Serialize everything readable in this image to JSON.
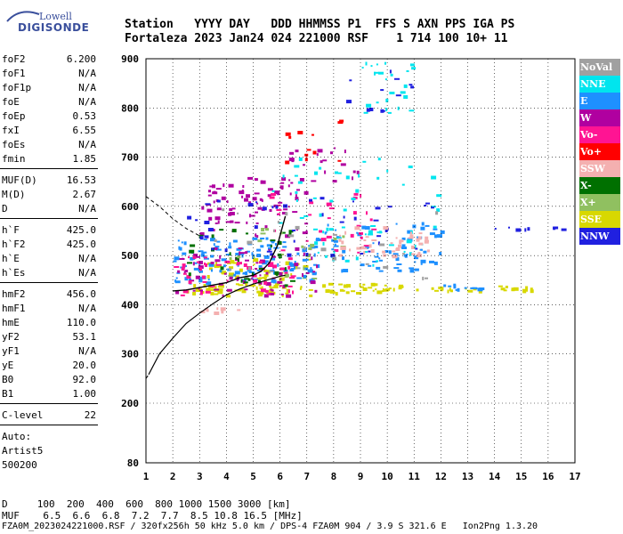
{
  "logo": {
    "line1": "Lowell",
    "line2": "DIGISONDE"
  },
  "header": {
    "row1": "Station   YYYY DAY   DDD HHMMSS P1  FFS S AXN PPS IGA PS",
    "row2": "Fortaleza 2023 Jan24 024 221000 RSF    1 714 100 10+ 11"
  },
  "params": [
    {
      "key": "foF2",
      "value": "6.200"
    },
    {
      "key": "foF1",
      "value": "N/A"
    },
    {
      "key": "foF1p",
      "value": "N/A"
    },
    {
      "key": "foE",
      "value": "N/A"
    },
    {
      "key": "foEp",
      "value": "0.53"
    },
    {
      "key": "fxI",
      "value": "6.55"
    },
    {
      "key": "foEs",
      "value": "N/A"
    },
    {
      "key": "fmin",
      "value": "1.85"
    },
    {
      "key": "MUF(D)",
      "value": "16.53"
    },
    {
      "key": "M(D)",
      "value": "2.67"
    },
    {
      "key": "D",
      "value": "N/A"
    },
    {
      "key": "h`F",
      "value": "425.0"
    },
    {
      "key": "h`F2",
      "value": "425.0"
    },
    {
      "key": "h`E",
      "value": "N/A"
    },
    {
      "key": "h`Es",
      "value": "N/A"
    },
    {
      "key": "hmF2",
      "value": "456.0"
    },
    {
      "key": "hmF1",
      "value": "N/A"
    },
    {
      "key": "hmE",
      "value": "110.0"
    },
    {
      "key": "yF2",
      "value": "53.1"
    },
    {
      "key": "yF1",
      "value": "N/A"
    },
    {
      "key": "yE",
      "value": "20.0"
    },
    {
      "key": "B0",
      "value": "92.0"
    },
    {
      "key": "B1",
      "value": "1.00"
    },
    {
      "key": "C-level",
      "value": "22"
    }
  ],
  "auto": {
    "line1": "Auto:",
    "line2": "Artist5",
    "line3": "500200"
  },
  "legend": [
    {
      "label": "NoVal",
      "color": "#a0a0a0"
    },
    {
      "label": "NNE",
      "color": "#00e5ee"
    },
    {
      "label": "E",
      "color": "#1e90ff"
    },
    {
      "label": "W",
      "color": "#b000a0"
    },
    {
      "label": "Vo-",
      "color": "#ff1493"
    },
    {
      "label": "Vo+",
      "color": "#ff0000"
    },
    {
      "label": "SSW",
      "color": "#f4b0b0"
    },
    {
      "label": "X-",
      "color": "#007000"
    },
    {
      "label": "X+",
      "color": "#90c060"
    },
    {
      "label": "SSE",
      "color": "#d8d800"
    },
    {
      "label": "NNW",
      "color": "#2020e0"
    }
  ],
  "footer": {
    "d_row": "D     100  200  400  600  800 1000 1500 3000 [km]",
    "muf_row": "MUF    6.5  6.6  6.8  7.2  7.7  8.5 10.8 16.5 [MHz]",
    "info": "FZA0M_2023024221000.RSF / 320fx256h 50 kHz 5.0 km / DPS-4 FZA0M 904 / 3.9 S 321.6 E   Ion2Png 1.3.20"
  },
  "chart_data": {
    "type": "scatter",
    "x_ticks": [
      "1",
      "2",
      "3",
      "4",
      "5",
      "6",
      "7",
      "8",
      "9",
      "10",
      "11",
      "12",
      "13",
      "14",
      "15",
      "16",
      "17"
    ],
    "y_ticks": [
      "80",
      "200",
      "300",
      "400",
      "500",
      "600",
      "700",
      "800",
      "900"
    ],
    "xlim": [
      1,
      17
    ],
    "ylim": [
      80,
      900
    ],
    "y_scale": "linear above 200 km, compressed below",
    "echo_clusters": [
      {
        "color_key": "SSE",
        "x": [
          2.3,
          7.2
        ],
        "y": [
          420,
          445
        ],
        "n": 60
      },
      {
        "color_key": "SSE",
        "x": [
          7.5,
          10.5
        ],
        "y": [
          425,
          445
        ],
        "n": 35
      },
      {
        "color_key": "SSE",
        "x": [
          11,
          15.5
        ],
        "y": [
          430,
          440
        ],
        "n": 25
      },
      {
        "color_key": "SSE",
        "x": [
          3,
          7
        ],
        "y": [
          455,
          495
        ],
        "n": 40
      },
      {
        "color_key": "E",
        "x": [
          2,
          7.5
        ],
        "y": [
          445,
          540
        ],
        "n": 140
      },
      {
        "color_key": "E",
        "x": [
          7.5,
          12
        ],
        "y": [
          470,
          570
        ],
        "n": 70
      },
      {
        "color_key": "E",
        "x": [
          11.8,
          13.5
        ],
        "y": [
          430,
          445
        ],
        "n": 12
      },
      {
        "color_key": "W",
        "x": [
          2,
          7.5
        ],
        "y": [
          420,
          520
        ],
        "n": 70
      },
      {
        "color_key": "W",
        "x": [
          3,
          7
        ],
        "y": [
          540,
          660
        ],
        "n": 90
      },
      {
        "color_key": "W",
        "x": [
          6,
          9
        ],
        "y": [
          650,
          720
        ],
        "n": 20
      },
      {
        "color_key": "Vo-",
        "x": [
          2,
          6.5
        ],
        "y": [
          420,
          500
        ],
        "n": 50
      },
      {
        "color_key": "Vo-",
        "x": [
          5.5,
          9.5
        ],
        "y": [
          500,
          640
        ],
        "n": 30
      },
      {
        "color_key": "Vo+",
        "x": [
          6,
          8.5
        ],
        "y": [
          680,
          780
        ],
        "n": 12
      },
      {
        "color_key": "X-",
        "x": [
          2.5,
          6.5
        ],
        "y": [
          430,
          560
        ],
        "n": 35
      },
      {
        "color_key": "X+",
        "x": [
          4,
          9
        ],
        "y": [
          450,
          560
        ],
        "n": 20
      },
      {
        "color_key": "NNE",
        "x": [
          5.5,
          12
        ],
        "y": [
          560,
          700
        ],
        "n": 35
      },
      {
        "color_key": "NNE",
        "x": [
          9,
          11
        ],
        "y": [
          790,
          900
        ],
        "n": 25
      },
      {
        "color_key": "NNE",
        "x": [
          7,
          11.5
        ],
        "y": [
          480,
          560
        ],
        "n": 30
      },
      {
        "color_key": "NNW",
        "x": [
          2.5,
          12
        ],
        "y": [
          500,
          620
        ],
        "n": 45
      },
      {
        "color_key": "NNW",
        "x": [
          8,
          11
        ],
        "y": [
          780,
          880
        ],
        "n": 12
      },
      {
        "color_key": "NNW",
        "x": [
          14,
          16.5
        ],
        "y": [
          555,
          560
        ],
        "n": 8
      },
      {
        "color_key": "SSW",
        "x": [
          8,
          11.5
        ],
        "y": [
          500,
          560
        ],
        "n": 45
      },
      {
        "color_key": "SSW",
        "x": [
          3,
          4.5
        ],
        "y": [
          385,
          395
        ],
        "n": 8
      },
      {
        "color_key": "NoVal",
        "x": [
          3,
          12
        ],
        "y": [
          450,
          600
        ],
        "n": 25
      }
    ],
    "profile_solid": {
      "x": [
        1.1,
        1.5,
        2,
        2.5,
        3,
        3.5,
        4,
        4.5,
        5,
        5.5,
        6,
        6.2
      ],
      "y": [
        258,
        300,
        332,
        362,
        383,
        402,
        420,
        432,
        442,
        450,
        458,
        460
      ]
    },
    "profile_dashed_low": {
      "x": [
        1,
        1.1
      ],
      "y": [
        250,
        258
      ]
    },
    "profile_dashed_high": {
      "x": [
        1,
        1.5,
        2,
        2.5,
        3
      ],
      "y": [
        620,
        600,
        575,
        555,
        540
      ]
    },
    "trace": {
      "x": [
        2,
        2.5,
        3,
        3.5,
        4,
        4.5,
        5,
        5.3,
        5.6,
        5.9,
        6.1,
        6.2
      ],
      "y": [
        428,
        430,
        435,
        440,
        445,
        455,
        460,
        468,
        485,
        520,
        560,
        580
      ]
    }
  }
}
